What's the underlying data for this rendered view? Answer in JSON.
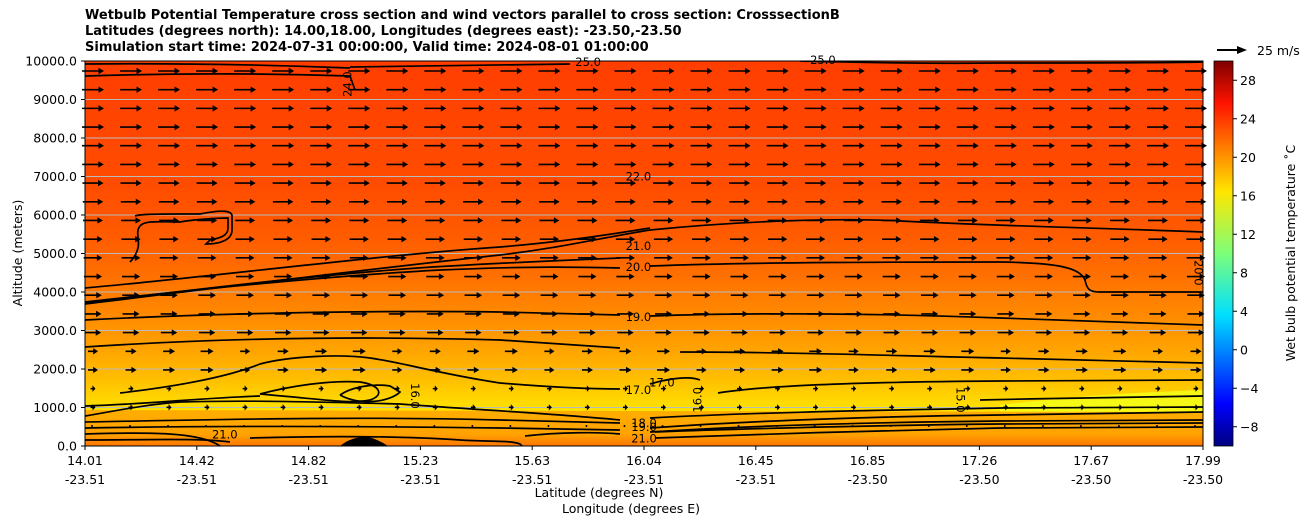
{
  "title_lines": [
    "Wetbulb Potential Temperature cross section and wind vectors parallel to cross section: CrosssectionB",
    "Latitudes (degrees north): 14.00,18.00, Longitudes (degrees east): -23.50,-23.50",
    "Simulation start time: 2024-07-31 00:00:00, Valid time: 2024-08-01 01:00:00"
  ],
  "chart_data": {
    "type": "contour",
    "ylabel": "Altitude (meters)",
    "xlabel_lat": "Latitude (degrees N)",
    "xlabel_lon": "Longitude (degrees E)",
    "ylim": [
      0,
      10000
    ],
    "yticks": [
      "0.0",
      "1000.0",
      "2000.0",
      "3000.0",
      "4000.0",
      "5000.0",
      "6000.0",
      "7000.0",
      "8000.0",
      "9000.0",
      "10000.0"
    ],
    "xticks": [
      {
        "lat": "14.01",
        "lon": "-23.51"
      },
      {
        "lat": "14.42",
        "lon": "-23.51"
      },
      {
        "lat": "14.82",
        "lon": "-23.51"
      },
      {
        "lat": "15.23",
        "lon": "-23.51"
      },
      {
        "lat": "15.63",
        "lon": "-23.51"
      },
      {
        "lat": "16.04",
        "lon": "-23.51"
      },
      {
        "lat": "16.45",
        "lon": "-23.51"
      },
      {
        "lat": "16.85",
        "lon": "-23.50"
      },
      {
        "lat": "17.26",
        "lon": "-23.50"
      },
      {
        "lat": "17.67",
        "lon": "-23.50"
      },
      {
        "lat": "17.99",
        "lon": "-23.50"
      }
    ],
    "grid": true,
    "colorbar": {
      "label": "Wet bulb potential temperature ˚C",
      "range": [
        -10,
        30
      ],
      "ticks": [
        "-8",
        "-4",
        "0",
        "4",
        "8",
        "12",
        "16",
        "20",
        "24",
        "28"
      ],
      "colormap": "jet"
    },
    "quiver_key": "25 m/s",
    "contour_labels": [
      {
        "text": "25.0",
        "x_frac": 0.45,
        "alt": 9980
      },
      {
        "text": "25.0",
        "x_frac": 0.66,
        "alt": 10020
      },
      {
        "text": "24.0",
        "x_frac": 0.235,
        "alt": 9400,
        "rot": -90
      },
      {
        "text": "22.0",
        "x_frac": 0.495,
        "alt": 7000
      },
      {
        "text": "21.0",
        "x_frac": 0.495,
        "alt": 5200
      },
      {
        "text": "20.0",
        "x_frac": 0.495,
        "alt": 4650
      },
      {
        "text": "20.0",
        "x_frac": 0.996,
        "alt": 4500,
        "rot": 90
      },
      {
        "text": "19.0",
        "x_frac": 0.495,
        "alt": 3350
      },
      {
        "text": "17.0",
        "x_frac": 0.495,
        "alt": 1450
      },
      {
        "text": "17.0",
        "x_frac": 0.516,
        "alt": 1650
      },
      {
        "text": "16.0",
        "x_frac": 0.295,
        "alt": 1300,
        "rot": 90
      },
      {
        "text": "16.0",
        "x_frac": 0.548,
        "alt": 1200,
        "rot": -90
      },
      {
        "text": "15.0",
        "x_frac": 0.783,
        "alt": 1200,
        "rot": 90
      },
      {
        "text": "18.0",
        "x_frac": 0.5,
        "alt": 600
      },
      {
        "text": "19.0",
        "x_frac": 0.5,
        "alt": 500
      },
      {
        "text": "21.0",
        "x_frac": 0.5,
        "alt": 200
      },
      {
        "text": "21.0",
        "x_frac": 0.125,
        "alt": 300
      }
    ],
    "colors": {
      "upper": "#ff3e00",
      "mid": "#ff8800",
      "low": "#ffcc00",
      "near_surface": "#ffee00"
    }
  }
}
